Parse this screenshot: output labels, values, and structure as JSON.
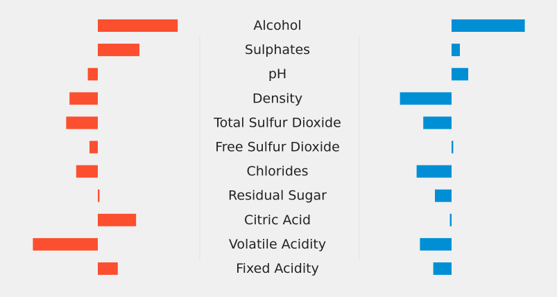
{
  "chart_data": {
    "type": "bar",
    "orientation": "horizontal",
    "layout": "back-to-back",
    "categories": [
      "Alcohol",
      "Sulphates",
      "pH",
      "Density",
      "Total Sulfur Dioxide",
      "Free Sulfur Dioxide",
      "Chlorides",
      "Residual Sugar",
      "Citric Acid",
      "Volatile Acidity",
      "Fixed Acidity"
    ],
    "series": [
      {
        "color": "#fc4f30",
        "values": [
          0.48,
          0.25,
          -0.06,
          -0.17,
          -0.19,
          -0.05,
          -0.13,
          0.01,
          0.23,
          -0.39,
          0.12
        ]
      },
      {
        "color": "#008fd5",
        "values": [
          0.44,
          0.05,
          0.1,
          -0.31,
          -0.17,
          0.01,
          -0.21,
          -0.1,
          -0.01,
          -0.19,
          -0.11
        ]
      }
    ],
    "xlim": [
      -0.4,
      0.6
    ],
    "axis_visible": false,
    "grid": false
  }
}
